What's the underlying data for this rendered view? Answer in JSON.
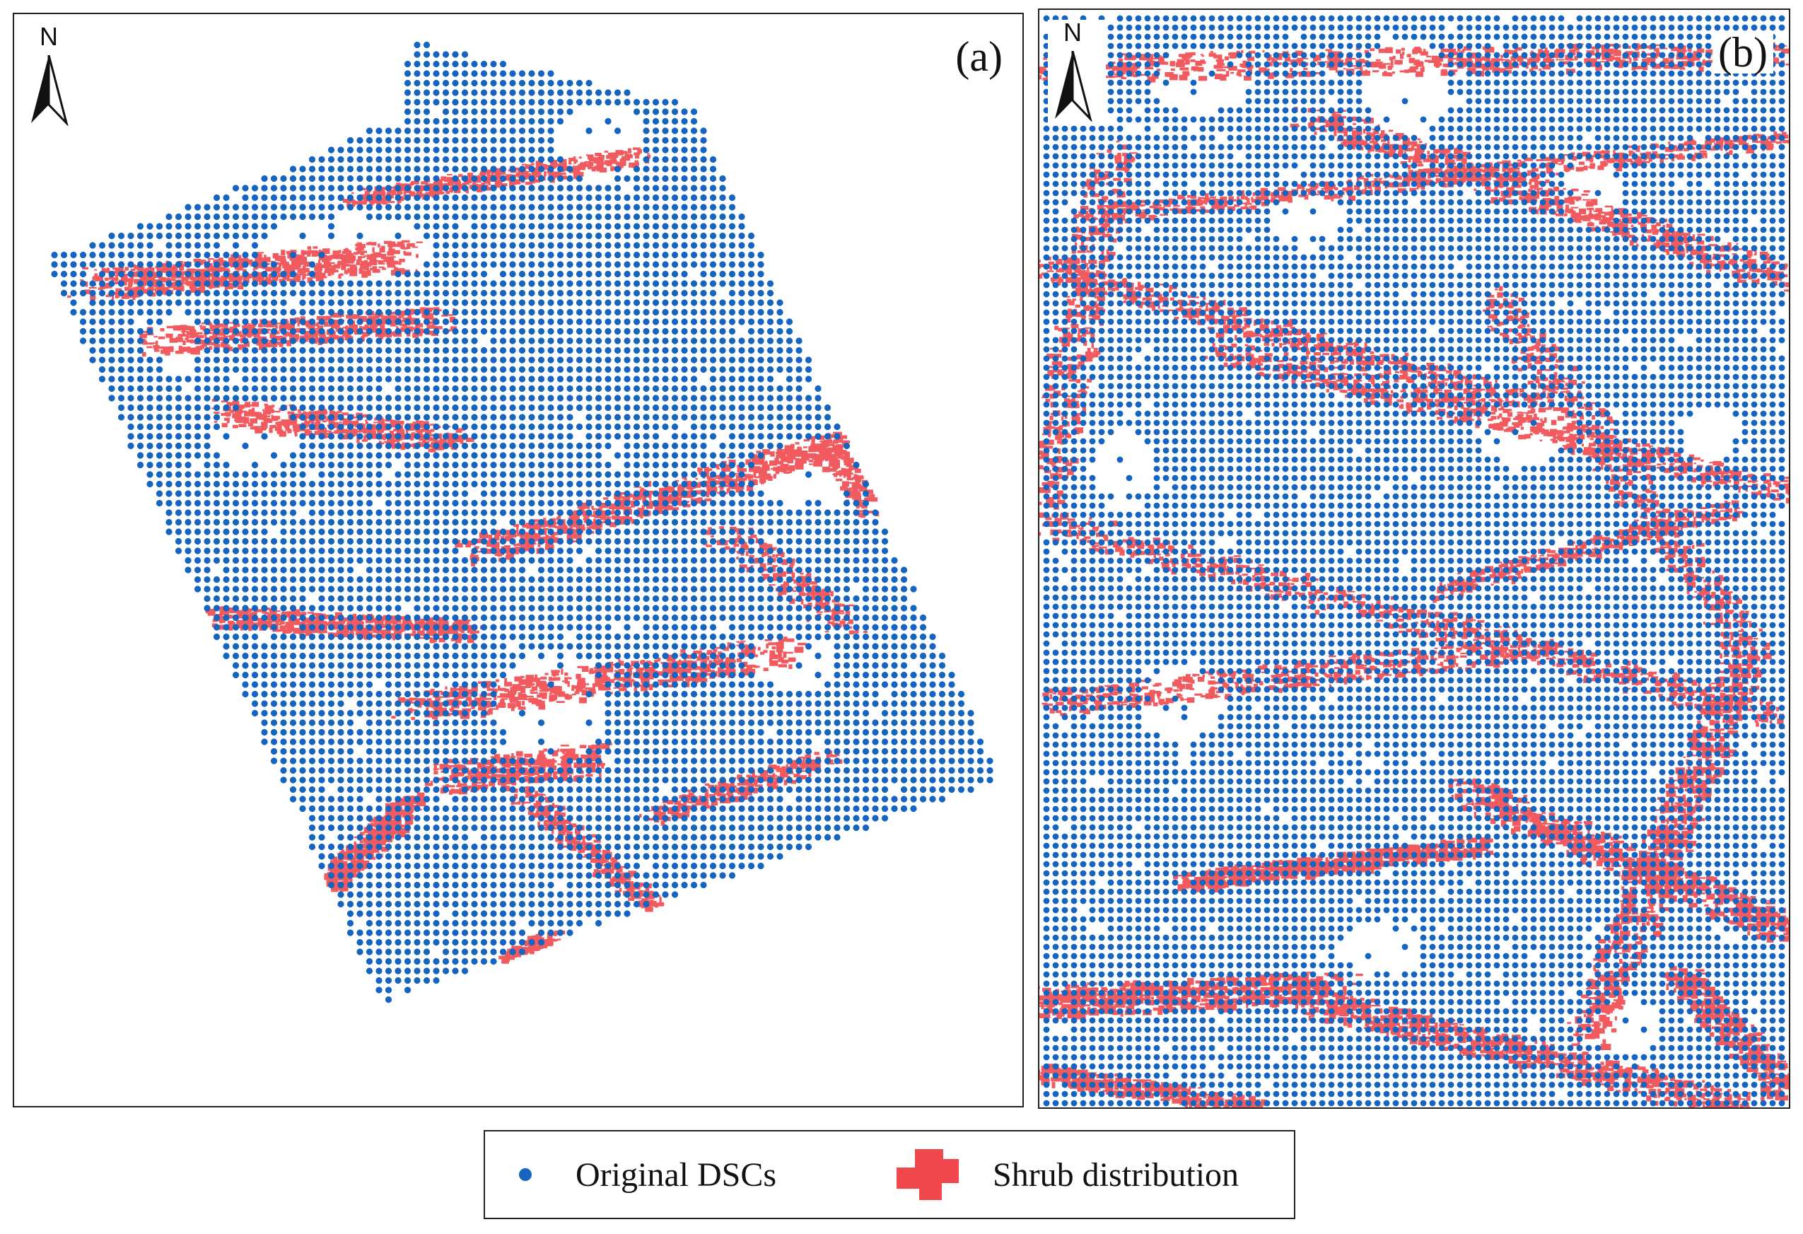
{
  "panels": [
    {
      "id": "a",
      "label": "(a)",
      "north": "N"
    },
    {
      "id": "b",
      "label": "(b)",
      "north": "N"
    }
  ],
  "legend": {
    "dsc": {
      "label": "Original DSCs",
      "icon": "blue-dot-icon"
    },
    "shrub": {
      "label": "Shrub distribution",
      "icon": "red-shrub-patch-icon"
    }
  },
  "colors": {
    "dsc": "#1565c0",
    "shrub": "#f0484c",
    "frame": "#222222"
  }
}
